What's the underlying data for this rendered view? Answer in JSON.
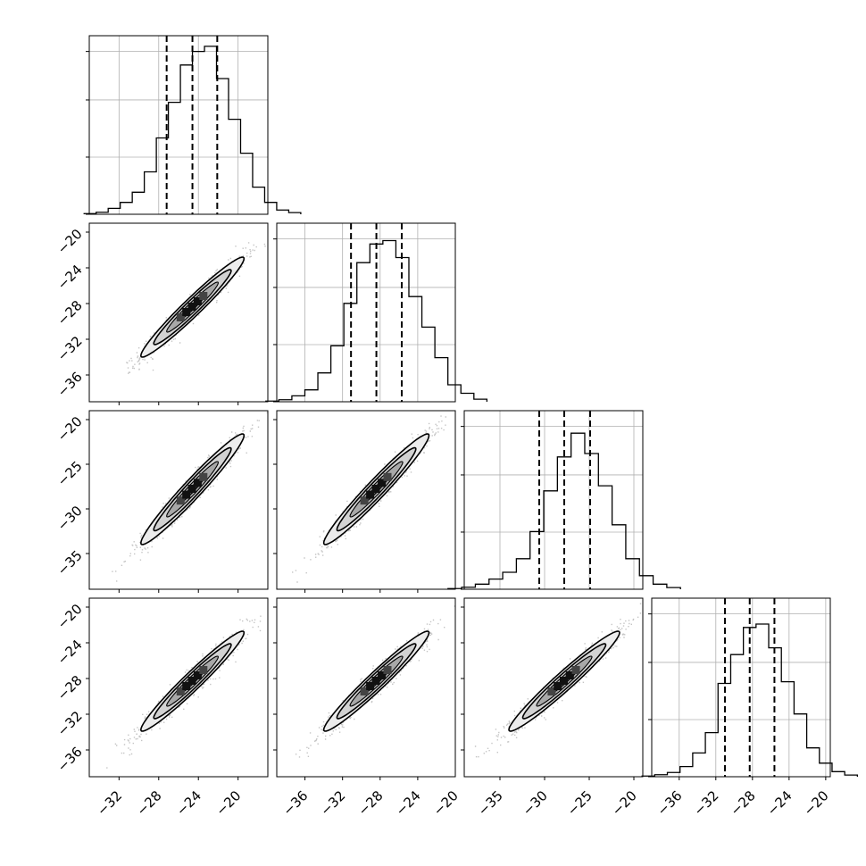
{
  "chart_data": {
    "type": "corner",
    "grid": true,
    "title": "",
    "legend": "none",
    "params": [
      {
        "mean": -24.6,
        "sd": 2.6,
        "range": [
          -35,
          -17
        ],
        "quantiles": [
          -27.2,
          -24.6,
          -22.1
        ],
        "hist": [
          0.004,
          0.012,
          0.035,
          0.07,
          0.13,
          0.25,
          0.45,
          0.66,
          0.88,
          0.96,
          0.99,
          0.8,
          0.56,
          0.36,
          0.16,
          0.07,
          0.025,
          0.01
        ],
        "ticks": [
          -32,
          -28,
          -24,
          -20
        ]
      },
      {
        "mean": -28.4,
        "sd": 2.8,
        "range": [
          -39,
          -20
        ],
        "quantiles": [
          -31.1,
          -28.4,
          -25.7
        ],
        "hist": [
          0.004,
          0.012,
          0.035,
          0.07,
          0.17,
          0.33,
          0.58,
          0.82,
          0.93,
          0.95,
          0.85,
          0.62,
          0.44,
          0.26,
          0.1,
          0.05,
          0.015
        ],
        "ticks": [
          -36,
          -32,
          -28,
          -24,
          -20
        ]
      },
      {
        "mean": -27.8,
        "sd": 3.1,
        "range": [
          -39,
          -19
        ],
        "quantiles": [
          -30.6,
          -27.8,
          -24.9
        ],
        "hist": [
          0.004,
          0.012,
          0.03,
          0.06,
          0.1,
          0.18,
          0.34,
          0.58,
          0.78,
          0.92,
          0.8,
          0.61,
          0.38,
          0.18,
          0.08,
          0.03,
          0.01
        ],
        "ticks": [
          -35,
          -30,
          -25,
          -20
        ]
      },
      {
        "mean": -28.3,
        "sd": 2.8,
        "range": [
          -39,
          -19.5
        ],
        "quantiles": [
          -31.0,
          -28.3,
          -25.6
        ],
        "hist": [
          0.004,
          0.012,
          0.025,
          0.06,
          0.14,
          0.26,
          0.55,
          0.72,
          0.88,
          0.9,
          0.76,
          0.56,
          0.37,
          0.17,
          0.08,
          0.03,
          0.01
        ],
        "ticks": [
          -36,
          -32,
          -28,
          -24,
          -20
        ]
      }
    ],
    "correlation": 0.97,
    "ylim_2d": [
      [
        -39,
        -19
      ],
      [
        -39,
        -19
      ],
      [
        -39,
        -19
      ]
    ],
    "ytick_labels_2d": [
      [
        "-20",
        "-24",
        "-28",
        "-32",
        "-36"
      ],
      [
        "-20",
        "-25",
        "-30",
        "-35"
      ],
      [
        "-20",
        "-24",
        "-28",
        "-32",
        "-36"
      ]
    ]
  },
  "colors": {
    "ink": "#000000",
    "grid": "#b0b0b0",
    "points": "#555555"
  }
}
